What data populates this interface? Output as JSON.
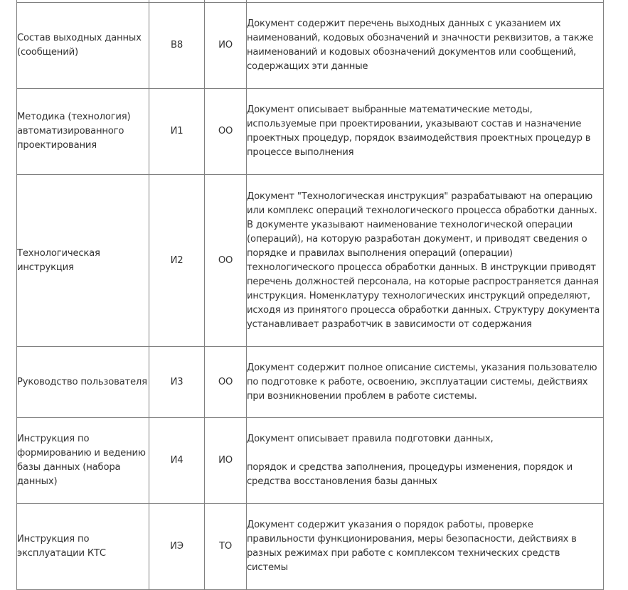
{
  "rows": [
    {
      "name": "",
      "code": "",
      "type": "",
      "desc": ""
    },
    {
      "name": "Состав выходных данных (сообщений)",
      "code": "В8",
      "type": "ИО",
      "desc": "Документ содержит перечень выходных данных с указанием их наименований, кодовых обозначений и значности реквизитов, а также наименований и кодовых обозначений документов или сообщений, содержащих эти данные"
    },
    {
      "name": "Методика (технология) автоматизированного проектирования",
      "code": "И1",
      "type": "ОО",
      "desc": "Документ описывает выбранные математические методы, используемые при проектировании, указывают состав и назначение проектных процедур, порядок взаимодействия проектных процедур в процессе выполнения"
    },
    {
      "name": "Технологическая инструкция",
      "code": "И2",
      "type": "ОО",
      "desc": "Документ \"Технологическая инструкция\" разрабатывают на операцию или комплекс операций технологического процесса обработки данных. В документе указывают наименование технологической операции (операций), на которую разработан документ, и приводят сведения о порядке и правилах выполнения операций (операции) технологического процесса обработки данных. В инструкции приводят перечень должностей персонала, на которые распространяется данная инструкция.  Номенклатуру технологических инструкций определяют, исходя из принятого процесса обработки данных. Структуру документа устанавливает разработчик в зависимости от содержания"
    },
    {
      "name": "Руководство пользователя",
      "code": "И3",
      "type": "ОО",
      "desc": "Документ содержит полное описание системы, указания пользователю по подготовке к работе, освоению, эксплуатации системы,  действиях при возникновении проблем в работе системы."
    },
    {
      "name": "Инструкция по формированию и ведению базы данных (набора данных)",
      "code": "И4",
      "type": "ИО",
      "desc": "Документ описывает правила подготовки данных,",
      "desc2": "порядок и средства заполнения, процедуры изменения, порядок и средства восстановления базы данных"
    },
    {
      "name": "Инструкция по эксплуатации КТС",
      "code": "ИЭ",
      "type": "ТО",
      "desc": "Документ содержит указания о порядок работы, проверке правильности функционирования, меры безопасности, действиях в разных режимах при работе с комплексом технических средств системы"
    }
  ]
}
